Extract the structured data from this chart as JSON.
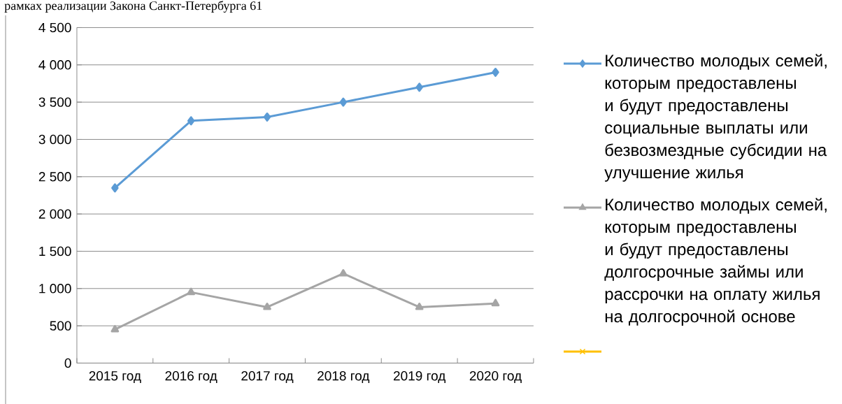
{
  "chart_data": {
    "type": "line",
    "annotations": [
      "рамках реализации Закона Санкт-Петербурга 61"
    ],
    "categories": [
      "2015 год",
      "2016 год",
      "2017 год",
      "2018 год",
      "2019 год",
      "2020 год"
    ],
    "series": [
      {
        "name": "Количество молодых семей, которым предоставлены и будут предоставлены социальные выплаты или безвозмездные субсидии на улучшение жилья",
        "color": "#5b9bd5",
        "marker": "diamond",
        "values": [
          2350,
          3250,
          3300,
          3500,
          3700,
          3900
        ]
      },
      {
        "name": "Количество молодых семей, которым  предоставлены и будут предоставлены долгосрочные займы или рассрочки на оплату жилья на долгосрочной основе",
        "color": "#a5a5a5",
        "marker": "triangle",
        "values": [
          450,
          950,
          750,
          1200,
          750,
          800
        ]
      },
      {
        "color": "#ffc000",
        "marker": "cross",
        "values": [
          null,
          null,
          null,
          null,
          null,
          null
        ]
      }
    ],
    "ylim": [
      0,
      4500
    ],
    "yticks": [
      0,
      500,
      {
        "value": 1000,
        "label": "1 000"
      },
      {
        "value": 1500,
        "label": "1 500"
      },
      {
        "value": 2000,
        "label": "2 000"
      },
      {
        "value": 2500,
        "label": "2 500"
      },
      {
        "value": 3000,
        "label": "3 000"
      },
      {
        "value": 3500,
        "label": "3 500"
      },
      {
        "value": 4000,
        "label": "4 000"
      },
      {
        "value": 4500,
        "label": "4 500"
      }
    ],
    "grid": "y",
    "legend": "right"
  }
}
